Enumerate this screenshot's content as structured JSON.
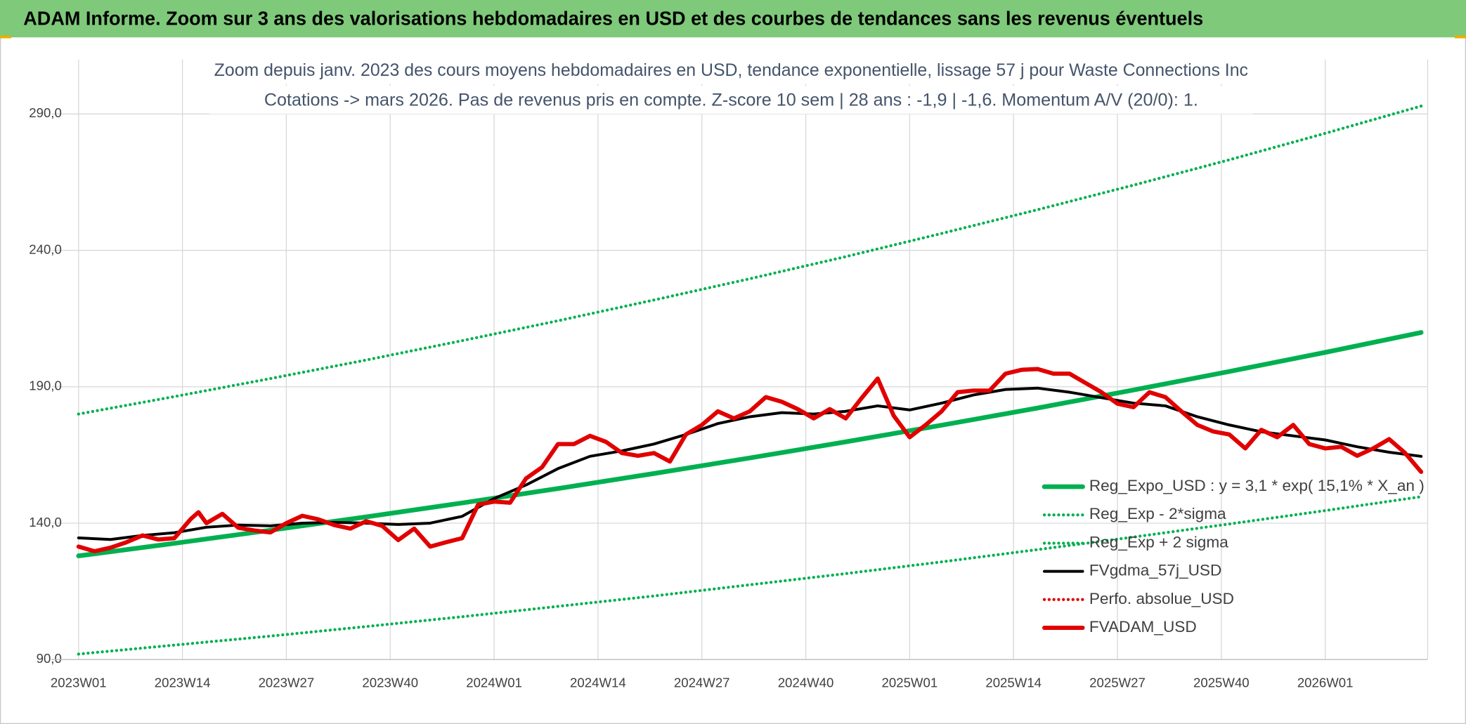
{
  "chart_data": {
    "type": "line",
    "header": "ADAM Informe. Zoom sur 3 ans des valorisations hebdomadaires en USD et des courbes de tendances sans les revenus éventuels",
    "title": "Zoom depuis janv. 2023 des cours moyens hebdomadaires en USD, tendance exponentielle, lissage 57 j pour Waste Connections Inc",
    "subtitle": "Cotations -> mars 2026. Pas de revenus pris en compte. Z-score 10 sem | 28 ans : -1,9 | -1,6. Momentum A/V (20/0): 1.",
    "xlim": [
      0,
      168
    ],
    "xticks": [
      {
        "value": 0,
        "label": "2023W01"
      },
      {
        "value": 13,
        "label": "2023W14"
      },
      {
        "value": 26,
        "label": "2023W27"
      },
      {
        "value": 39,
        "label": "2023W40"
      },
      {
        "value": 52,
        "label": "2024W01"
      },
      {
        "value": 65,
        "label": "2024W14"
      },
      {
        "value": 78,
        "label": "2024W27"
      },
      {
        "value": 91,
        "label": "2024W40"
      },
      {
        "value": 104,
        "label": "2025W01"
      },
      {
        "value": 117,
        "label": "2025W14"
      },
      {
        "value": 130,
        "label": "2025W27"
      },
      {
        "value": 143,
        "label": "2025W40"
      },
      {
        "value": 156,
        "label": "2026W01"
      }
    ],
    "ylim": [
      90,
      310
    ],
    "yticks": [
      {
        "value": 90,
        "label": "90,0"
      },
      {
        "value": 140,
        "label": "140,0"
      },
      {
        "value": 190,
        "label": "190,0"
      },
      {
        "value": 240,
        "label": "240,0"
      },
      {
        "value": 290,
        "label": "290,0"
      }
    ],
    "grid": true,
    "legend": "lower right",
    "series": [
      {
        "name": "Reg_Expo_USD : y = 3,1 * exp( 15,1% *  X_an )",
        "color": "#00b050",
        "style": "solid",
        "x": [
          0,
          12,
          24,
          36,
          48,
          60,
          72,
          84,
          96,
          108,
          120,
          132,
          144,
          156,
          168
        ],
        "values": [
          128,
          132.6,
          137.4,
          142.3,
          147.4,
          152.7,
          158.2,
          163.9,
          169.8,
          175.9,
          182.2,
          188.8,
          195.6,
          202.6,
          209.9
        ]
      },
      {
        "name": "Reg_Exp - 2*sigma",
        "color": "#00b050",
        "style": "dotted",
        "x": [
          0,
          12,
          24,
          36,
          48,
          60,
          72,
          84,
          96,
          108,
          120,
          132,
          144,
          156,
          168
        ],
        "values": [
          92,
          95.3,
          98.6,
          102.1,
          105.7,
          109.5,
          113.3,
          117.4,
          121.5,
          125.8,
          130.3,
          134.9,
          139.7,
          144.6,
          149.7
        ]
      },
      {
        "name": "Reg_Exp + 2 sigma",
        "color": "#00b050",
        "style": "dotted",
        "x": [
          0,
          12,
          24,
          36,
          48,
          60,
          72,
          84,
          96,
          108,
          120,
          132,
          144,
          156,
          168
        ],
        "values": [
          180,
          186.4,
          193.0,
          199.8,
          206.9,
          214.2,
          221.8,
          229.6,
          237.7,
          246.2,
          254.9,
          263.9,
          273.2,
          282.9,
          292.9
        ]
      },
      {
        "name": "FVgdma_57j_USD",
        "color": "#000000",
        "style": "solid",
        "x": [
          0,
          4,
          8,
          12,
          16,
          20,
          24,
          28,
          32,
          36,
          40,
          44,
          48,
          52,
          56,
          60,
          64,
          68,
          72,
          76,
          80,
          84,
          88,
          92,
          96,
          100,
          104,
          108,
          112,
          116,
          120,
          124,
          128,
          132,
          136,
          140,
          144,
          148,
          152,
          156,
          160,
          164,
          168
        ],
        "values": [
          134.6,
          134,
          135.5,
          136.5,
          138.5,
          139.3,
          139,
          140,
          140.3,
          140,
          139.5,
          140,
          142.5,
          149,
          154,
          160,
          164.5,
          166.5,
          169,
          172.5,
          176.5,
          179,
          180.5,
          180,
          181,
          183,
          181.5,
          184,
          187,
          189,
          189.5,
          188,
          186,
          184,
          183,
          179,
          176,
          173.5,
          172,
          170.5,
          168,
          166,
          164.5
        ]
      },
      {
        "name": "Perfo. absolue_USD",
        "color": "#e00000",
        "style": "dotted",
        "x": [],
        "values": []
      },
      {
        "name": "FVADAM_USD",
        "color": "#e00000",
        "style": "solid",
        "x": [
          0,
          2,
          4,
          6,
          8,
          10,
          12,
          14,
          15,
          16,
          18,
          20,
          22,
          24,
          26,
          28,
          30,
          32,
          34,
          36,
          38,
          40,
          42,
          44,
          46,
          48,
          50,
          52,
          54,
          56,
          58,
          60,
          62,
          64,
          66,
          68,
          70,
          72,
          74,
          76,
          78,
          80,
          82,
          84,
          86,
          88,
          90,
          92,
          94,
          96,
          98,
          100,
          102,
          104,
          106,
          108,
          110,
          112,
          114,
          116,
          118,
          120,
          122,
          124,
          126,
          128,
          130,
          132,
          134,
          136,
          138,
          140,
          142,
          144,
          146,
          148,
          150,
          152,
          154,
          156,
          158,
          160,
          162,
          164,
          166,
          168
        ],
        "values": [
          131.4,
          129.7,
          131,
          133,
          135.5,
          134,
          134.5,
          141.4,
          144,
          140,
          143.4,
          138.3,
          137.3,
          136.6,
          140,
          142.7,
          141.4,
          139.3,
          138,
          140.7,
          139,
          133.8,
          138,
          131.4,
          133,
          134.5,
          146.8,
          147.9,
          147.5,
          156.4,
          160.5,
          169,
          169,
          172,
          169.8,
          165.7,
          164.7,
          165.7,
          162.6,
          172.5,
          176,
          181,
          178.4,
          181,
          186.2,
          184.5,
          181.8,
          178.4,
          181.8,
          178.4,
          185.9,
          193,
          179.4,
          171.5,
          176,
          181,
          188,
          188.6,
          188.6,
          194.8,
          196.2,
          196.5,
          194.8,
          194.8,
          191.4,
          188,
          183.8,
          182.5,
          188,
          186.2,
          181,
          176,
          173.6,
          172.5,
          167.4,
          174.2,
          171.5,
          176,
          169,
          167.4,
          168,
          164.7,
          167.4,
          170.8,
          165.7,
          158.8
        ]
      }
    ]
  }
}
